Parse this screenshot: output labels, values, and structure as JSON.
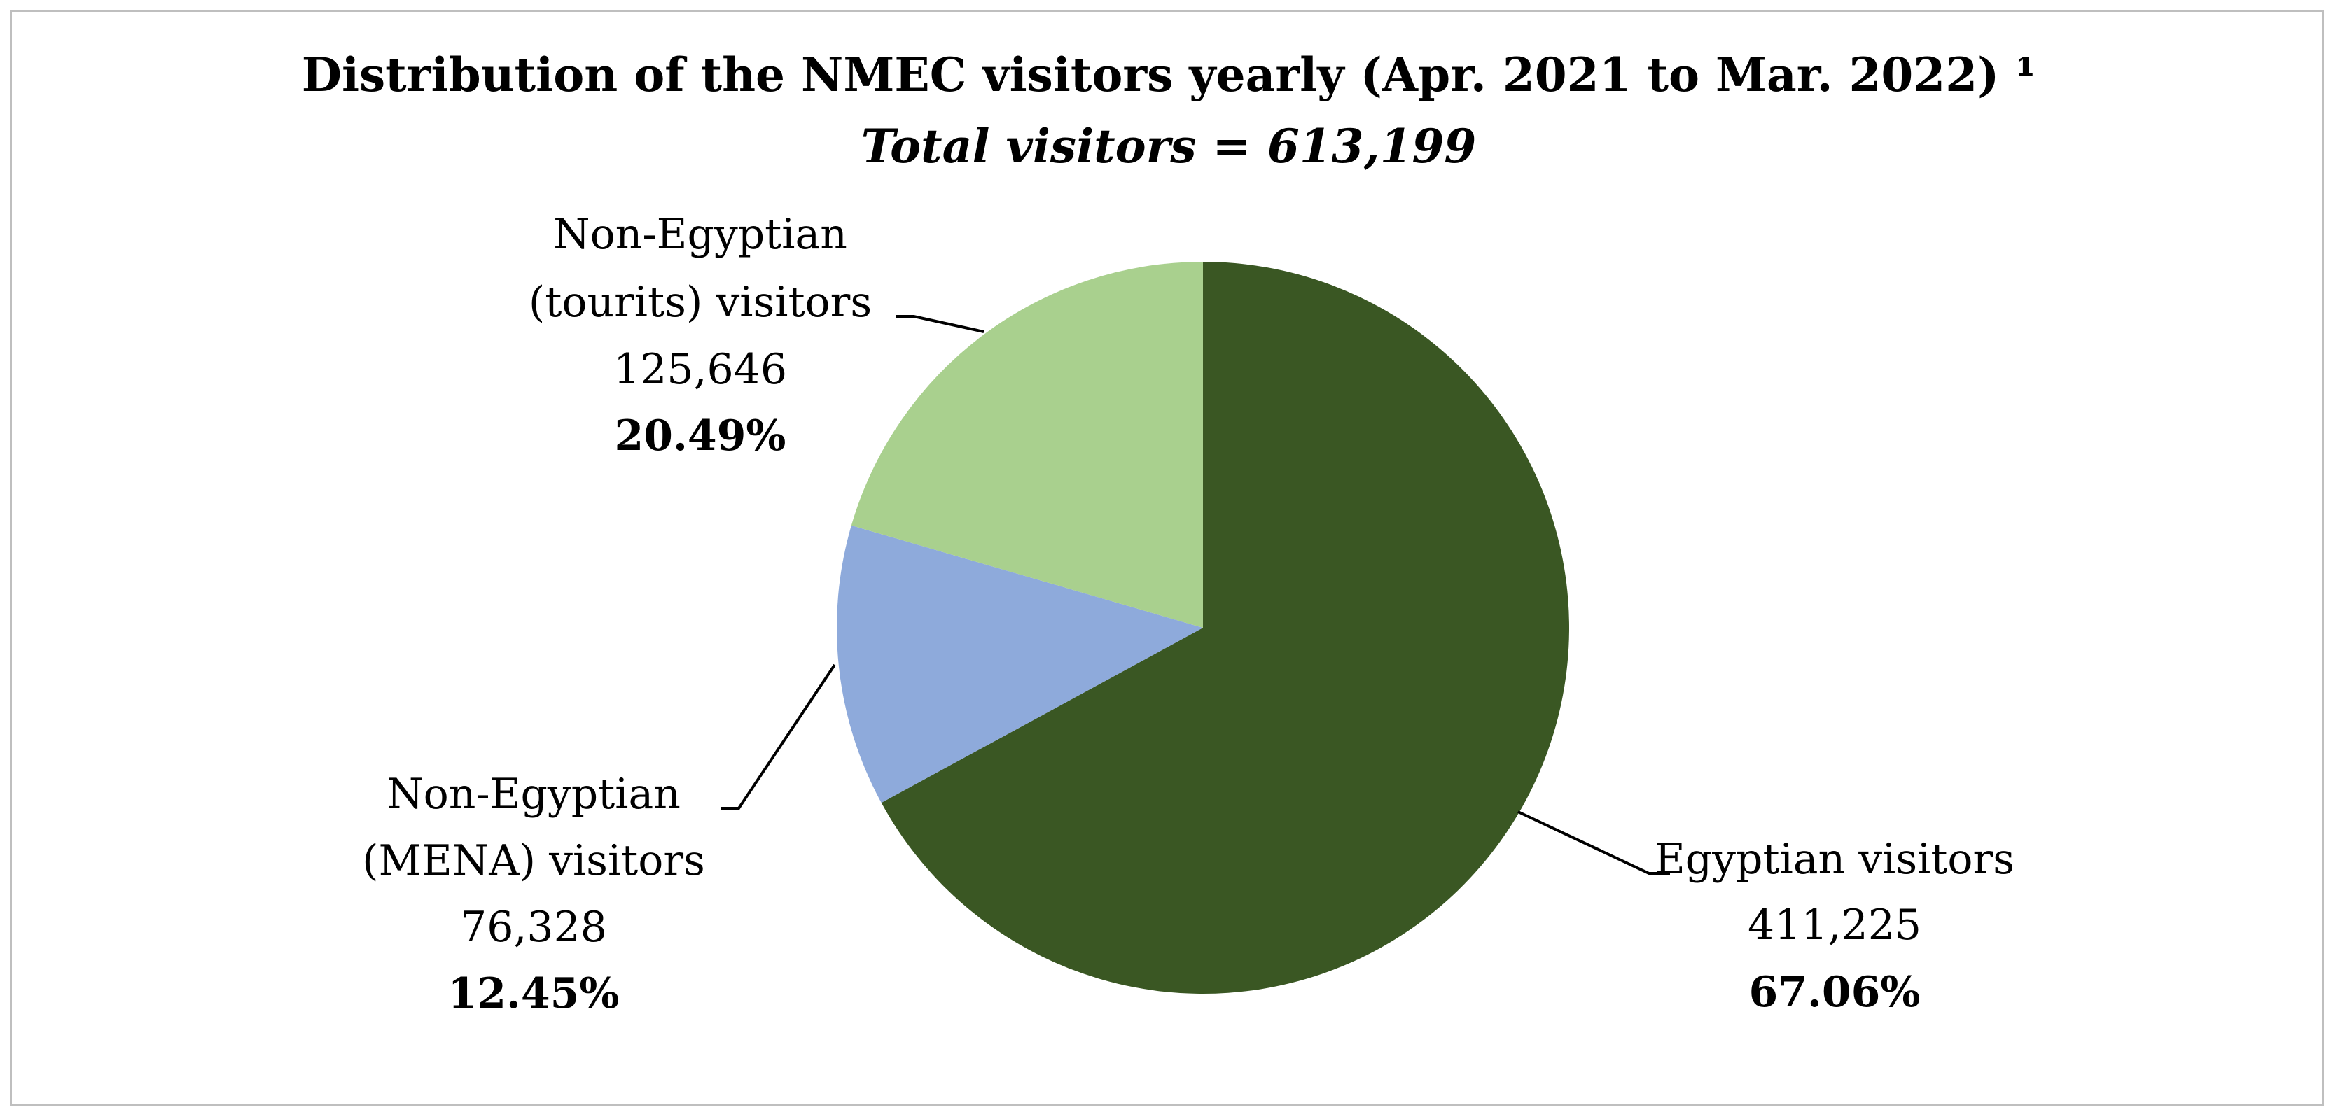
{
  "chart_data": {
    "type": "pie",
    "title": "Distribution of the NMEC visitors yearly (Apr. 2021 to Mar. 2022) ¹",
    "subtitle": "Total visitors = 613,199",
    "start_angle_deg": 0,
    "direction": "clockwise",
    "legend": "none",
    "slices": [
      {
        "label_lines": [
          "Egyptian visitors"
        ],
        "value": 411225,
        "value_text": "411,225",
        "percent": 67.06,
        "percent_text": "67.06%",
        "color": "#3a5723"
      },
      {
        "label_lines": [
          "Non-Egyptian",
          "(MENA) visitors"
        ],
        "value": 76328,
        "value_text": "76,328",
        "percent": 12.45,
        "percent_text": "12.45%",
        "color": "#8eaadb"
      },
      {
        "label_lines": [
          "Non-Egyptian",
          "(tourits) visitors"
        ],
        "value": 125646,
        "value_text": "125,646",
        "percent": 20.49,
        "percent_text": "20.49%",
        "color": "#a9d08e"
      }
    ]
  }
}
